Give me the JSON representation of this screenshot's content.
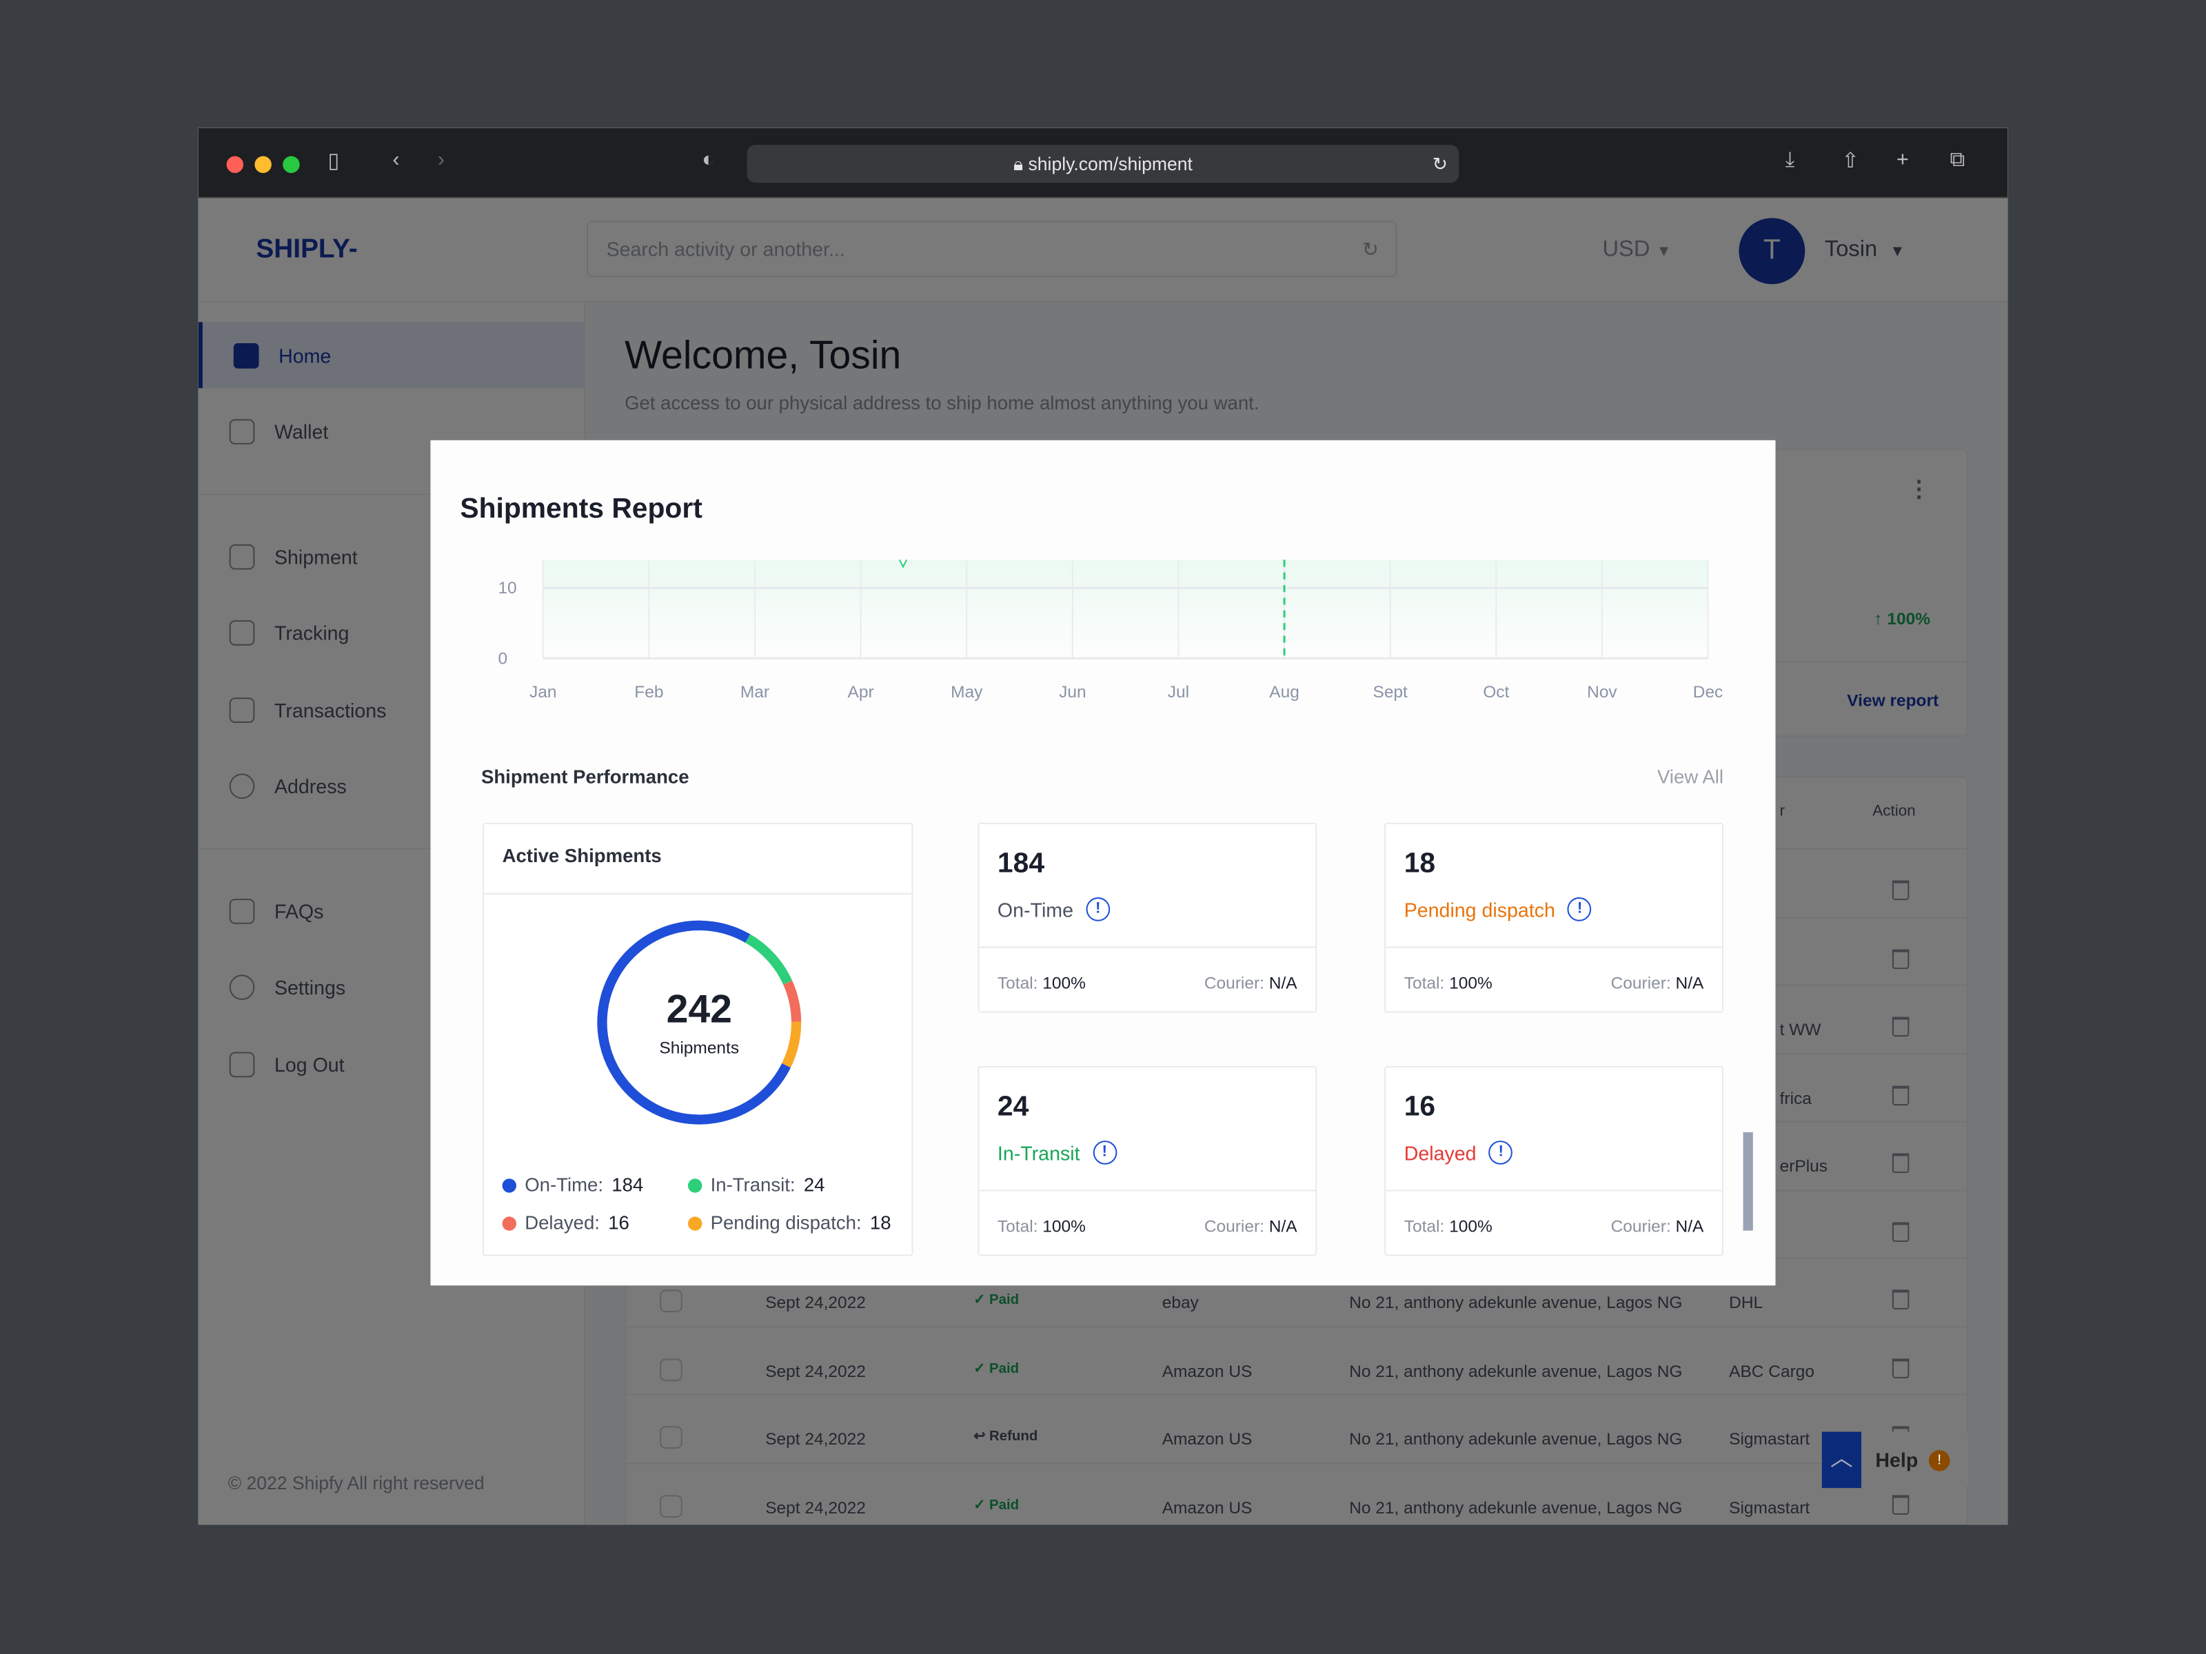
{
  "browser": {
    "url": "shiply.com/shipment"
  },
  "header": {
    "logo": "SHIPLY-",
    "search_placeholder": "Search activity or another...",
    "currency": "USD",
    "avatar_initial": "T",
    "user_name": "Tosin"
  },
  "sidebar": {
    "items": [
      {
        "label": "Home"
      },
      {
        "label": "Wallet"
      },
      {
        "label": "Shipment"
      },
      {
        "label": "Tracking"
      },
      {
        "label": "Transactions"
      },
      {
        "label": "Address"
      },
      {
        "label": "FAQs"
      },
      {
        "label": "Settings"
      },
      {
        "label": "Log Out"
      }
    ],
    "footer": "© 2022 Shipfy All right reserved"
  },
  "main": {
    "welcome": "Welcome, Tosin",
    "subtitle": "Get access to our physical address to ship home almost anything you want.",
    "growth": "↑ 100%",
    "view_report": "View report",
    "action_header": "Action",
    "partial_header": "r",
    "rows": [
      {
        "courier": ""
      },
      {
        "courier": ""
      },
      {
        "courier": "t WW"
      },
      {
        "courier": "frica"
      },
      {
        "courier": "erPlus"
      },
      {
        "courier": ""
      },
      {
        "date": "Sept 24,2022",
        "status": "✓ Paid",
        "store": "ebay",
        "address": "No 21, anthony adekunle avenue, Lagos NG",
        "courier": "DHL"
      },
      {
        "date": "Sept 24,2022",
        "status": "✓ Paid",
        "store": "Amazon US",
        "address": "No 21, anthony adekunle avenue, Lagos NG",
        "courier": "ABC Cargo"
      },
      {
        "date": "Sept 24,2022",
        "status": "↩ Refund",
        "store": "Amazon US",
        "address": "No 21, anthony adekunle avenue, Lagos NG",
        "courier": "Sigmastart"
      },
      {
        "date": "Sept 24,2022",
        "status": "✓ Paid",
        "store": "Amazon US",
        "address": "No 21, anthony adekunle avenue, Lagos NG",
        "courier": "Sigmastart"
      }
    ]
  },
  "help": {
    "label": "Help",
    "badge": "!"
  },
  "modal": {
    "title": "Shipments Report",
    "performance_title": "Shipment Performance",
    "view_all": "View All",
    "active": {
      "title": "Active Shipments",
      "total": "242",
      "unit": "Shipments",
      "legend": [
        {
          "label": "On-Time:",
          "value": "184",
          "color": "#1f4fd8"
        },
        {
          "label": "In-Transit:",
          "value": "24",
          "color": "#2ecf7a"
        },
        {
          "label": "Delayed:",
          "value": "16",
          "color": "#f26d5b"
        },
        {
          "label": "Pending dispatch:",
          "value": "18",
          "color": "#f9a825"
        }
      ]
    },
    "stats": [
      {
        "value": "184",
        "label": "On-Time",
        "color": "#4b5260",
        "total_label": "Total:",
        "total": "100%",
        "courier_label": "Courier:",
        "courier": "N/A"
      },
      {
        "value": "18",
        "label": "Pending dispatch",
        "color": "#e8740c",
        "total_label": "Total:",
        "total": "100%",
        "courier_label": "Courier:",
        "courier": "N/A"
      },
      {
        "value": "24",
        "label": "In-Transit",
        "color": "#18a558",
        "total_label": "Total:",
        "total": "100%",
        "courier_label": "Courier:",
        "courier": "N/A"
      },
      {
        "value": "16",
        "label": "Delayed",
        "color": "#e53935",
        "total_label": "Total:",
        "total": "100%",
        "courier_label": "Courier:",
        "courier": "N/A"
      }
    ]
  },
  "chart_data": {
    "type": "area",
    "title": "Shipments Report",
    "categories": [
      "Jan",
      "Feb",
      "Mar",
      "Apr",
      "May",
      "Jun",
      "Jul",
      "Aug",
      "Sept",
      "Oct",
      "Nov",
      "Dec"
    ],
    "yticks": [
      0,
      10
    ],
    "ylim": [
      0,
      14
    ],
    "highlight": "Aug",
    "series": [
      {
        "name": "Shipments",
        "x": [
          0,
          1,
          2,
          3,
          3.3,
          3.4,
          3.5,
          4,
          5,
          6,
          7,
          8,
          9,
          10,
          11
        ],
        "values": [
          20,
          20,
          20,
          20,
          16,
          13,
          16,
          20,
          20,
          20,
          20,
          20,
          20,
          20,
          20
        ],
        "color": "#2ecf7a"
      }
    ]
  }
}
